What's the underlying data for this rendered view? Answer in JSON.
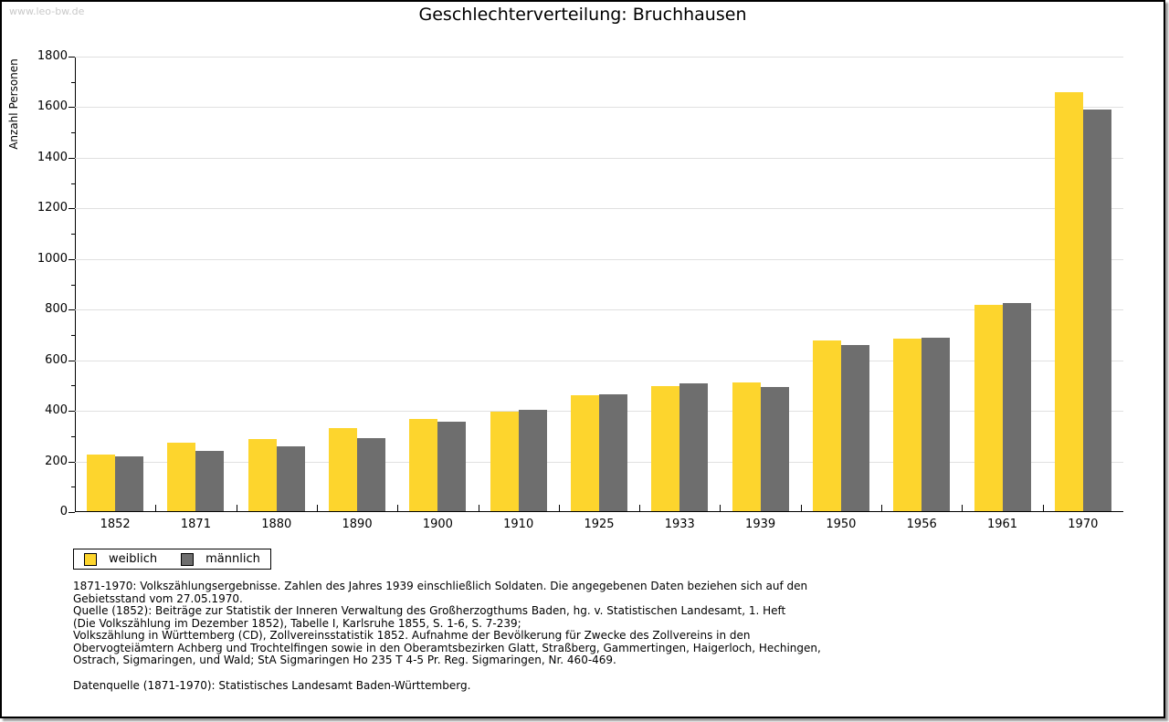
{
  "watermark": "www.leo-bw.de",
  "title": "Geschlechterverteilung: Bruchhausen",
  "chart_data": {
    "type": "bar",
    "title": "Geschlechterverteilung: Bruchhausen",
    "xlabel": "",
    "ylabel": "Anzahl Personen",
    "ylim": [
      0,
      1800
    ],
    "ytick_step": 200,
    "ytick_minor_step": 100,
    "grid": true,
    "legend_position": "bottom-left",
    "categories": [
      "1852",
      "1871",
      "1880",
      "1890",
      "1900",
      "1910",
      "1925",
      "1933",
      "1939",
      "1950",
      "1956",
      "1961",
      "1970"
    ],
    "series": [
      {
        "name": "weiblich",
        "color": "#FDD52D",
        "values": [
          225,
          269,
          284,
          327,
          364,
          394,
          457,
          494,
          508,
          676,
          683,
          815,
          1657
        ]
      },
      {
        "name": "männlich",
        "color": "#6E6E6E",
        "values": [
          218,
          237,
          255,
          288,
          354,
          399,
          462,
          504,
          489,
          658,
          687,
          822,
          1588
        ]
      }
    ]
  },
  "footnotes": {
    "lines": [
      "1871-1970: Volkszählungsergebnisse. Zahlen des Jahres 1939 einschließlich Soldaten. Die angegebenen Daten beziehen sich auf den",
      "Gebietsstand vom 27.05.1970.",
      "Quelle (1852): Beiträge zur Statistik der Inneren Verwaltung des Großherzogthums Baden, hg. v. Statistischen Landesamt, 1. Heft",
      "(Die Volkszählung im Dezember 1852), Tabelle I, Karlsruhe 1855, S. 1-6, S. 7-239;",
      "Volkszählung in Württemberg (CD), Zollvereinsstatistik 1852. Aufnahme der Bevölkerung für Zwecke des Zollvereins in den",
      "Obervogteiämtern Achberg und Trochtelfingen sowie in den Oberamtsbezirken Glatt, Straßberg, Gammertingen, Haigerloch, Hechingen,",
      "Ostrach, Sigmaringen, und Wald; StA Sigmaringen Ho 235 T 4-5 Pr. Reg. Sigmaringen, Nr. 460-469."
    ],
    "datasource": "Datenquelle (1871-1970): Statistisches Landesamt Baden-Württemberg."
  }
}
